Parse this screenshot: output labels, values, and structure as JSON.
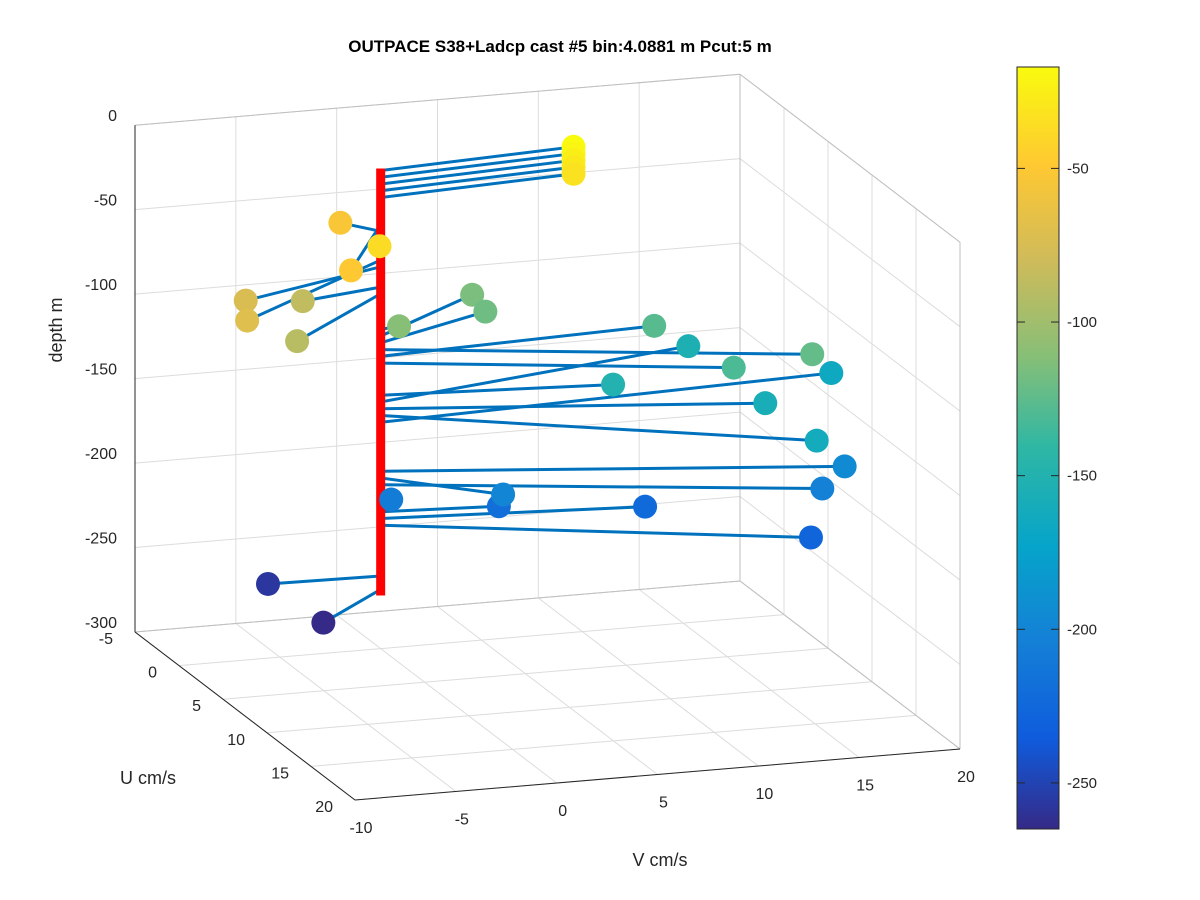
{
  "chart_data": {
    "type": "scatter",
    "title": "OUTPACE S38+Ladcp cast #5 bin:4.0881 m  Pcut:5 m",
    "xlabel": "V cm/s",
    "ylabel": "U cm/s",
    "zlabel": "depth m",
    "xlim": [
      -10,
      20
    ],
    "ylim": [
      -5,
      20
    ],
    "zlim": [
      -300,
      0
    ],
    "x_ticks": [
      "-10",
      "-5",
      "0",
      "5",
      "10",
      "15",
      "20"
    ],
    "y_ticks": [
      "-5",
      "0",
      "5",
      "10",
      "15",
      "20"
    ],
    "z_ticks": [
      "0",
      "-50",
      "-100",
      "-150",
      "-200",
      "-250",
      "-300"
    ],
    "colorbar": {
      "colormap": "parula",
      "range": [
        -265,
        -17
      ],
      "ticks": [
        "-50",
        "-100",
        "-150",
        "-200",
        "-250"
      ]
    },
    "grid": true,
    "profile_line_color": "#ff0000",
    "vector_color": "#0072bd",
    "points": [
      {
        "v": 10.0,
        "u": -1.0,
        "depth": -17
      },
      {
        "v": 10.0,
        "u": -1.0,
        "depth": -21
      },
      {
        "v": 10.0,
        "u": -1.0,
        "depth": -25
      },
      {
        "v": 10.0,
        "u": -1.0,
        "depth": -29
      },
      {
        "v": 10.0,
        "u": -1.0,
        "depth": -33
      },
      {
        "v": -2.5,
        "u": 5.6,
        "depth": -37
      },
      {
        "v": -4.0,
        "u": 5.8,
        "depth": -49
      },
      {
        "v": -1.3,
        "u": -1.6,
        "depth": -53
      },
      {
        "v": -9.5,
        "u": 6.6,
        "depth": -70
      },
      {
        "v": -8.0,
        "u": 3.0,
        "depth": -74
      },
      {
        "v": -4.3,
        "u": 1.0,
        "depth": -86
      },
      {
        "v": -6.5,
        "u": 5.4,
        "depth": -90
      },
      {
        "v": 1.0,
        "u": -0.2,
        "depth": -111
      },
      {
        "v": 6.5,
        "u": -4.5,
        "depth": -115
      },
      {
        "v": 6.5,
        "u": -3.0,
        "depth": -119
      },
      {
        "v": 19.0,
        "u": 5.5,
        "depth": -123
      },
      {
        "v": 14.0,
        "u": -1.0,
        "depth": -127
      },
      {
        "v": 15.5,
        "u": 4.6,
        "depth": -131
      },
      {
        "v": 11.0,
        "u": 1.2,
        "depth": -150
      },
      {
        "v": 17.0,
        "u": -4.0,
        "depth": -154
      },
      {
        "v": 17.5,
        "u": 3.6,
        "depth": -158
      },
      {
        "v": 18.0,
        "u": 8.3,
        "depth": -162
      },
      {
        "v": 23.0,
        "u": -1.5,
        "depth": -166
      },
      {
        "v": 21.0,
        "u": 4.6,
        "depth": -195
      },
      {
        "v": 4.5,
        "u": 3.6,
        "depth": -199
      },
      {
        "v": 19.5,
        "u": 5.5,
        "depth": -203
      },
      {
        "v": 0.0,
        "u": 1.2,
        "depth": -207
      },
      {
        "v": 5.6,
        "u": 0.6,
        "depth": -219
      },
      {
        "v": 12.5,
        "u": 1.4,
        "depth": -223
      },
      {
        "v": 18.5,
        "u": 6.5,
        "depth": -227
      },
      {
        "v": -5.5,
        "u": -0.2,
        "depth": -257
      },
      {
        "v": -4.5,
        "u": 3.8,
        "depth": -265
      }
    ]
  }
}
